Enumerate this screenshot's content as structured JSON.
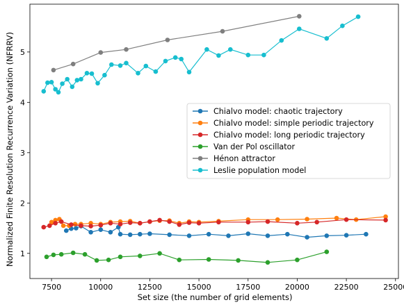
{
  "chart_data": {
    "type": "line",
    "title": "",
    "xlabel": "Set size (the number of grid elements)",
    "ylabel": "Normalized Finite Resolution Recurrence Variation (NFRRV)",
    "xlim": [
      6400,
      25150
    ],
    "ylim": [
      0.5,
      5.95
    ],
    "xticks": [
      7500,
      10000,
      12500,
      15000,
      17500,
      20000,
      22500,
      25000
    ],
    "yticks": [
      1,
      2,
      3,
      4,
      5
    ],
    "grid": false,
    "legend_position": "center-right",
    "series": [
      {
        "name": "Chialvo model: chaotic trajectory",
        "color": "#1f77b4",
        "x": [
          8250,
          8500,
          8750,
          9000,
          9500,
          10000,
          10500,
          10900,
          11000,
          11500,
          12000,
          12500,
          13500,
          14500,
          15500,
          16500,
          17500,
          18500,
          19500,
          20500,
          21500,
          22500,
          23500
        ],
        "y": [
          1.45,
          1.49,
          1.5,
          1.54,
          1.42,
          1.47,
          1.42,
          1.52,
          1.38,
          1.37,
          1.38,
          1.39,
          1.37,
          1.35,
          1.38,
          1.35,
          1.39,
          1.35,
          1.38,
          1.32,
          1.35,
          1.36,
          1.38
        ]
      },
      {
        "name": "Chialvo model: simple periodic trajectory",
        "color": "#ff7f0e",
        "x": [
          7500,
          7700,
          7900,
          8100,
          8400,
          8700,
          9000,
          9500,
          10000,
          10500,
          11000,
          11500,
          12000,
          12500,
          13000,
          13500,
          14000,
          14500,
          15000,
          16000,
          17500,
          19000,
          20500,
          22000,
          23000,
          24500
        ],
        "y": [
          1.62,
          1.66,
          1.68,
          1.55,
          1.55,
          1.58,
          1.58,
          1.6,
          1.58,
          1.62,
          1.63,
          1.64,
          1.6,
          1.63,
          1.65,
          1.65,
          1.6,
          1.63,
          1.62,
          1.64,
          1.67,
          1.67,
          1.68,
          1.7,
          1.67,
          1.73
        ]
      },
      {
        "name": "Chialvo model: long periodic trajectory",
        "color": "#d62728",
        "x": [
          7100,
          7400,
          7700,
          8000,
          8500,
          9000,
          9500,
          10000,
          10500,
          11000,
          11500,
          12000,
          12500,
          13000,
          13500,
          14000,
          14500,
          15000,
          16000,
          17500,
          18500,
          20000,
          21000,
          22500,
          24500
        ],
        "y": [
          1.52,
          1.55,
          1.6,
          1.63,
          1.57,
          1.55,
          1.54,
          1.56,
          1.6,
          1.58,
          1.61,
          1.6,
          1.63,
          1.66,
          1.63,
          1.57,
          1.61,
          1.6,
          1.62,
          1.62,
          1.63,
          1.6,
          1.62,
          1.67,
          1.66
        ]
      },
      {
        "name": "Van der Pol oscillator",
        "color": "#2ca02c",
        "x": [
          7250,
          7600,
          8000,
          8600,
          9200,
          9800,
          10400,
          11000,
          12000,
          13000,
          14000,
          15500,
          17000,
          18500,
          20000,
          21500
        ],
        "y": [
          0.93,
          0.97,
          0.98,
          1.01,
          0.98,
          0.86,
          0.87,
          0.93,
          0.95,
          1.0,
          0.87,
          0.88,
          0.86,
          0.82,
          0.87,
          1.03
        ]
      },
      {
        "name": "Hénon attractor",
        "color": "#7f7f7f",
        "x": [
          7600,
          8600,
          10000,
          11300,
          13400,
          16200,
          20100
        ],
        "y": [
          4.64,
          4.76,
          4.99,
          5.05,
          5.24,
          5.41,
          5.71
        ]
      },
      {
        "name": "Leslie population model",
        "color": "#17becf",
        "x": [
          7100,
          7300,
          7500,
          7700,
          7850,
          8050,
          8300,
          8550,
          8800,
          9000,
          9300,
          9550,
          9850,
          10200,
          10550,
          11000,
          11300,
          11900,
          12300,
          12800,
          13300,
          13800,
          14100,
          14500,
          15400,
          16000,
          16600,
          17500,
          18300,
          19200,
          20100,
          21500,
          22300,
          23100
        ],
        "y": [
          4.22,
          4.39,
          4.4,
          4.26,
          4.2,
          4.37,
          4.46,
          4.31,
          4.44,
          4.46,
          4.58,
          4.57,
          4.38,
          4.54,
          4.75,
          4.73,
          4.78,
          4.58,
          4.72,
          4.61,
          4.82,
          4.89,
          4.86,
          4.6,
          5.05,
          4.93,
          5.05,
          4.94,
          4.94,
          5.23,
          5.46,
          5.27,
          5.52,
          5.7
        ]
      }
    ]
  }
}
